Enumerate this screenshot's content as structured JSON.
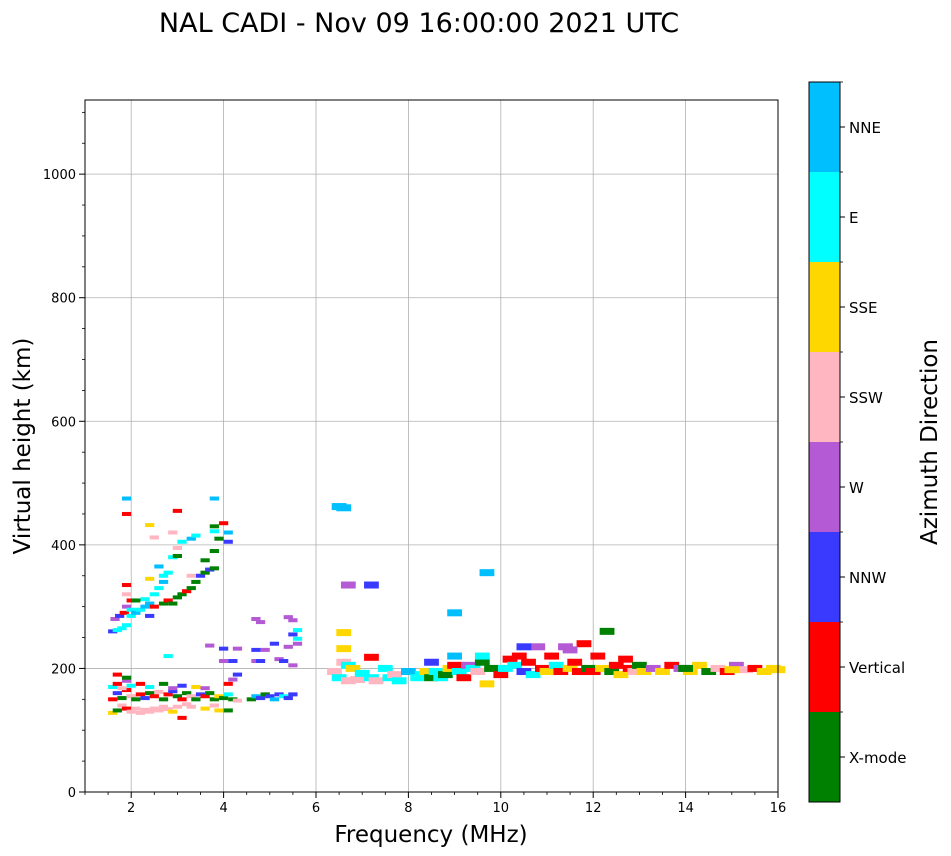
{
  "chart_data": {
    "type": "scatter",
    "title": "NAL CADI - Nov 09 16:00:00 2021 UTC",
    "xlabel": "Frequency (MHz)",
    "ylabel": "Virtual height (km)",
    "xlim": [
      1,
      16
    ],
    "ylim": [
      0,
      1120
    ],
    "xticks": [
      2,
      4,
      6,
      8,
      10,
      12,
      14,
      16
    ],
    "yticks": [
      0,
      200,
      400,
      600,
      800,
      1000
    ],
    "grid": true,
    "colorbar": {
      "label": "Azimuth Direction",
      "categories": [
        {
          "name": "X-mode",
          "color": "#008000"
        },
        {
          "name": "Vertical",
          "color": "#ff0000"
        },
        {
          "name": "NNW",
          "color": "#3a3aff"
        },
        {
          "name": "W",
          "color": "#b35ad4"
        },
        {
          "name": "SSW",
          "color": "#ffb6c1"
        },
        {
          "name": "SSE",
          "color": "#ffd700"
        },
        {
          "name": "E",
          "color": "#00ffff"
        },
        {
          "name": "NNE",
          "color": "#00bfff"
        }
      ]
    },
    "points": [
      [
        1.6,
        128,
        "SSE"
      ],
      [
        1.7,
        132,
        "X-mode"
      ],
      [
        1.8,
        140,
        "SSW"
      ],
      [
        1.9,
        135,
        "Vertical"
      ],
      [
        2.0,
        130,
        "SSW"
      ],
      [
        2.1,
        135,
        "SSW"
      ],
      [
        2.2,
        128,
        "SSW"
      ],
      [
        2.3,
        133,
        "SSW"
      ],
      [
        2.4,
        130,
        "SSW"
      ],
      [
        2.5,
        135,
        "SSW"
      ],
      [
        2.6,
        132,
        "SSW"
      ],
      [
        2.7,
        138,
        "SSW"
      ],
      [
        2.8,
        134,
        "SSW"
      ],
      [
        2.9,
        130,
        "SSE"
      ],
      [
        3.0,
        138,
        "SSW"
      ],
      [
        3.1,
        120,
        "Vertical"
      ],
      [
        3.2,
        142,
        "SSW"
      ],
      [
        3.3,
        138,
        "SSW"
      ],
      [
        3.6,
        135,
        "SSE"
      ],
      [
        3.8,
        140,
        "SSW"
      ],
      [
        3.9,
        132,
        "SSE"
      ],
      [
        4.1,
        132,
        "X-mode"
      ],
      [
        1.6,
        150,
        "Vertical"
      ],
      [
        1.7,
        160,
        "NNW"
      ],
      [
        1.8,
        152,
        "X-mode"
      ],
      [
        1.9,
        165,
        "Vertical"
      ],
      [
        2.0,
        155,
        "SSW"
      ],
      [
        2.1,
        150,
        "X-mode"
      ],
      [
        2.2,
        158,
        "Vertical"
      ],
      [
        2.3,
        152,
        "NNW"
      ],
      [
        2.4,
        160,
        "X-mode"
      ],
      [
        2.5,
        155,
        "Vertical"
      ],
      [
        2.6,
        162,
        "SSW"
      ],
      [
        2.7,
        150,
        "X-mode"
      ],
      [
        2.8,
        158,
        "Vertical"
      ],
      [
        2.9,
        163,
        "NNW"
      ],
      [
        3.0,
        155,
        "X-mode"
      ],
      [
        3.1,
        150,
        "Vertical"
      ],
      [
        3.2,
        160,
        "X-mode"
      ],
      [
        3.3,
        155,
        "SSW"
      ],
      [
        3.4,
        150,
        "X-mode"
      ],
      [
        3.5,
        158,
        "NNW"
      ],
      [
        3.6,
        155,
        "Vertical"
      ],
      [
        3.7,
        160,
        "X-mode"
      ],
      [
        3.8,
        150,
        "X-mode"
      ],
      [
        3.9,
        155,
        "SSE"
      ],
      [
        4.0,
        152,
        "X-mode"
      ],
      [
        4.1,
        158,
        "E"
      ],
      [
        4.2,
        150,
        "X-mode"
      ],
      [
        4.3,
        148,
        "SSW"
      ],
      [
        4.6,
        150,
        "X-mode"
      ],
      [
        4.7,
        155,
        "NNE"
      ],
      [
        4.8,
        152,
        "NNW"
      ],
      [
        4.9,
        158,
        "X-mode"
      ],
      [
        5.0,
        155,
        "NNW"
      ],
      [
        5.1,
        150,
        "NNE"
      ],
      [
        5.2,
        158,
        "NNW"
      ],
      [
        5.3,
        155,
        "E"
      ],
      [
        5.4,
        152,
        "NNW"
      ],
      [
        5.5,
        158,
        "NNW"
      ],
      [
        1.6,
        170,
        "E"
      ],
      [
        1.7,
        175,
        "Vertical"
      ],
      [
        1.8,
        168,
        "SSW"
      ],
      [
        1.9,
        180,
        "W"
      ],
      [
        2.0,
        172,
        "E"
      ],
      [
        2.2,
        175,
        "Vertical"
      ],
      [
        2.4,
        170,
        "E"
      ],
      [
        2.7,
        175,
        "X-mode"
      ],
      [
        2.9,
        168,
        "W"
      ],
      [
        3.1,
        172,
        "NNW"
      ],
      [
        3.4,
        170,
        "SSE"
      ],
      [
        3.6,
        168,
        "W"
      ],
      [
        4.1,
        175,
        "Vertical"
      ],
      [
        4.2,
        182,
        "W"
      ],
      [
        4.3,
        190,
        "NNW"
      ],
      [
        1.7,
        190,
        "Vertical"
      ],
      [
        1.9,
        185,
        "X-mode"
      ],
      [
        2.8,
        220,
        "E"
      ],
      [
        4.0,
        212,
        "W"
      ],
      [
        4.2,
        212,
        "NNW"
      ],
      [
        4.7,
        212,
        "W"
      ],
      [
        4.8,
        212,
        "NNW"
      ],
      [
        5.2,
        215,
        "W"
      ],
      [
        5.3,
        212,
        "NNW"
      ],
      [
        5.5,
        205,
        "W"
      ],
      [
        3.7,
        237,
        "W"
      ],
      [
        4.0,
        232,
        "NNW"
      ],
      [
        4.3,
        232,
        "W"
      ],
      [
        4.7,
        230,
        "NNW"
      ],
      [
        4.9,
        230,
        "W"
      ],
      [
        5.4,
        235,
        "W"
      ],
      [
        5.1,
        240,
        "NNW"
      ],
      [
        5.6,
        240,
        "W"
      ],
      [
        5.6,
        248,
        "E"
      ],
      [
        5.5,
        255,
        "NNW"
      ],
      [
        5.6,
        262,
        "E"
      ],
      [
        4.7,
        280,
        "W"
      ],
      [
        4.8,
        275,
        "W"
      ],
      [
        5.4,
        283,
        "W"
      ],
      [
        5.5,
        278,
        "W"
      ],
      [
        1.6,
        260,
        "NNW"
      ],
      [
        1.7,
        262,
        "E"
      ],
      [
        1.8,
        265,
        "E"
      ],
      [
        1.9,
        270,
        "E"
      ],
      [
        1.65,
        280,
        "W"
      ],
      [
        1.75,
        285,
        "NNW"
      ],
      [
        1.85,
        290,
        "Vertical"
      ],
      [
        1.9,
        300,
        "W"
      ],
      [
        2.0,
        285,
        "E"
      ],
      [
        2.0,
        295,
        "E"
      ],
      [
        2.1,
        290,
        "NNE"
      ],
      [
        2.2,
        295,
        "E"
      ],
      [
        2.3,
        300,
        "NNE"
      ],
      [
        2.3,
        312,
        "E"
      ],
      [
        2.4,
        305,
        "NNE"
      ],
      [
        2.5,
        320,
        "E"
      ],
      [
        2.6,
        330,
        "E"
      ],
      [
        2.7,
        340,
        "NNE"
      ],
      [
        2.7,
        350,
        "E"
      ],
      [
        2.6,
        365,
        "NNE"
      ],
      [
        2.8,
        355,
        "E"
      ],
      [
        2.9,
        380,
        "E"
      ],
      [
        3.0,
        395,
        "SSW"
      ],
      [
        3.1,
        405,
        "E"
      ],
      [
        3.3,
        410,
        "NNE"
      ],
      [
        3.4,
        415,
        "E"
      ],
      [
        3.8,
        422,
        "E"
      ],
      [
        4.1,
        420,
        "NNE"
      ],
      [
        1.9,
        320,
        "SSW"
      ],
      [
        2.0,
        310,
        "Vertical"
      ],
      [
        2.4,
        285,
        "NNW"
      ],
      [
        1.9,
        335,
        "Vertical"
      ],
      [
        2.1,
        310,
        "X-mode"
      ],
      [
        2.5,
        300,
        "Vertical"
      ],
      [
        2.7,
        305,
        "X-mode"
      ],
      [
        2.8,
        310,
        "Vertical"
      ],
      [
        2.9,
        305,
        "X-mode"
      ],
      [
        3.0,
        315,
        "X-mode"
      ],
      [
        3.1,
        320,
        "X-mode"
      ],
      [
        3.2,
        325,
        "Vertical"
      ],
      [
        3.3,
        330,
        "X-mode"
      ],
      [
        3.4,
        340,
        "X-mode"
      ],
      [
        3.5,
        350,
        "NNW"
      ],
      [
        3.6,
        355,
        "X-mode"
      ],
      [
        3.7,
        360,
        "NNW"
      ],
      [
        3.8,
        362,
        "X-mode"
      ],
      [
        3.6,
        375,
        "X-mode"
      ],
      [
        3.8,
        390,
        "X-mode"
      ],
      [
        3.9,
        410,
        "X-mode"
      ],
      [
        3.8,
        430,
        "X-mode"
      ],
      [
        4.0,
        435,
        "Vertical"
      ],
      [
        4.1,
        405,
        "NNW"
      ],
      [
        3.0,
        455,
        "Vertical"
      ],
      [
        2.9,
        420,
        "SSW"
      ],
      [
        1.9,
        475,
        "NNE"
      ],
      [
        1.9,
        450,
        "Vertical"
      ],
      [
        2.4,
        432,
        "SSE"
      ],
      [
        3.8,
        475,
        "NNE"
      ],
      [
        2.5,
        412,
        "SSW"
      ],
      [
        3.0,
        382,
        "X-mode"
      ],
      [
        3.3,
        350,
        "SSW"
      ],
      [
        2.4,
        345,
        "SSE"
      ],
      [
        6.5,
        462,
        "NNE"
      ],
      [
        6.6,
        460,
        "NNE"
      ],
      [
        6.7,
        335,
        "W"
      ],
      [
        7.2,
        335,
        "NNW"
      ],
      [
        6.6,
        258,
        "SSE"
      ],
      [
        6.6,
        232,
        "SSE"
      ],
      [
        6.6,
        210,
        "SSW"
      ],
      [
        6.7,
        205,
        "E"
      ],
      [
        6.8,
        200,
        "SSE"
      ],
      [
        6.4,
        195,
        "SSW"
      ],
      [
        6.5,
        185,
        "E"
      ],
      [
        6.7,
        180,
        "SSW"
      ],
      [
        6.9,
        182,
        "SSW"
      ],
      [
        7.0,
        192,
        "E"
      ],
      [
        7.2,
        185,
        "E"
      ],
      [
        7.3,
        180,
        "SSW"
      ],
      [
        7.5,
        200,
        "E"
      ],
      [
        7.6,
        185,
        "E"
      ],
      [
        7.7,
        190,
        "SSW"
      ],
      [
        7.8,
        180,
        "E"
      ],
      [
        8.0,
        195,
        "NNE"
      ],
      [
        8.2,
        185,
        "E"
      ],
      [
        8.3,
        190,
        "E"
      ],
      [
        8.4,
        195,
        "SSE"
      ],
      [
        8.5,
        185,
        "X-mode"
      ],
      [
        8.5,
        210,
        "NNW"
      ],
      [
        8.6,
        195,
        "E"
      ],
      [
        8.7,
        185,
        "E"
      ],
      [
        8.8,
        190,
        "X-mode"
      ],
      [
        8.9,
        200,
        "SSE"
      ],
      [
        9.0,
        205,
        "Vertical"
      ],
      [
        9.0,
        220,
        "NNE"
      ],
      [
        9.1,
        195,
        "E"
      ],
      [
        9.2,
        185,
        "Vertical"
      ],
      [
        9.3,
        205,
        "W"
      ],
      [
        9.4,
        200,
        "E"
      ],
      [
        9.5,
        195,
        "SSW"
      ],
      [
        9.6,
        210,
        "X-mode"
      ],
      [
        9.7,
        175,
        "SSE"
      ],
      [
        9.8,
        200,
        "X-mode"
      ],
      [
        9.7,
        355,
        "NNE"
      ],
      [
        9.0,
        290,
        "NNE"
      ],
      [
        7.2,
        218,
        "Vertical"
      ],
      [
        9.6,
        220,
        "E"
      ],
      [
        10.0,
        190,
        "Vertical"
      ],
      [
        10.1,
        200,
        "E"
      ],
      [
        10.2,
        215,
        "Vertical"
      ],
      [
        10.3,
        205,
        "E"
      ],
      [
        10.4,
        220,
        "Vertical"
      ],
      [
        10.5,
        195,
        "NNW"
      ],
      [
        10.6,
        210,
        "Vertical"
      ],
      [
        10.7,
        190,
        "E"
      ],
      [
        10.8,
        235,
        "W"
      ],
      [
        10.9,
        200,
        "Vertical"
      ],
      [
        11.0,
        195,
        "SSE"
      ],
      [
        11.1,
        220,
        "Vertical"
      ],
      [
        11.2,
        205,
        "E"
      ],
      [
        11.3,
        195,
        "Vertical"
      ],
      [
        11.4,
        235,
        "W"
      ],
      [
        11.5,
        200,
        "SSE"
      ],
      [
        11.6,
        210,
        "Vertical"
      ],
      [
        11.7,
        195,
        "Vertical"
      ],
      [
        11.8,
        240,
        "Vertical"
      ],
      [
        11.9,
        200,
        "X-mode"
      ],
      [
        12.0,
        195,
        "Vertical"
      ],
      [
        12.1,
        220,
        "Vertical"
      ],
      [
        12.2,
        200,
        "SSE"
      ],
      [
        12.3,
        260,
        "X-mode"
      ],
      [
        12.4,
        195,
        "X-mode"
      ],
      [
        12.5,
        205,
        "Vertical"
      ],
      [
        12.6,
        190,
        "SSE"
      ],
      [
        12.7,
        215,
        "Vertical"
      ],
      [
        12.8,
        200,
        "Vertical"
      ],
      [
        12.9,
        195,
        "SSW"
      ],
      [
        13.0,
        205,
        "X-mode"
      ],
      [
        13.1,
        195,
        "SSE"
      ],
      [
        13.3,
        200,
        "W"
      ],
      [
        13.5,
        195,
        "SSE"
      ],
      [
        13.7,
        205,
        "Vertical"
      ],
      [
        13.9,
        200,
        "W"
      ],
      [
        14.1,
        195,
        "SSE"
      ],
      [
        14.3,
        205,
        "SSE"
      ],
      [
        14.5,
        195,
        "X-mode"
      ],
      [
        14.7,
        200,
        "SSW"
      ],
      [
        14.9,
        195,
        "Vertical"
      ],
      [
        15.1,
        205,
        "W"
      ],
      [
        15.3,
        198,
        "SSW"
      ],
      [
        15.5,
        200,
        "Vertical"
      ],
      [
        15.7,
        195,
        "SSE"
      ],
      [
        15.9,
        200,
        "SSE"
      ],
      [
        16.0,
        198,
        "SSE"
      ],
      [
        11.5,
        230,
        "W"
      ],
      [
        10.5,
        235,
        "NNW"
      ],
      [
        14.0,
        200,
        "X-mode"
      ],
      [
        15.0,
        198,
        "SSE"
      ]
    ]
  }
}
